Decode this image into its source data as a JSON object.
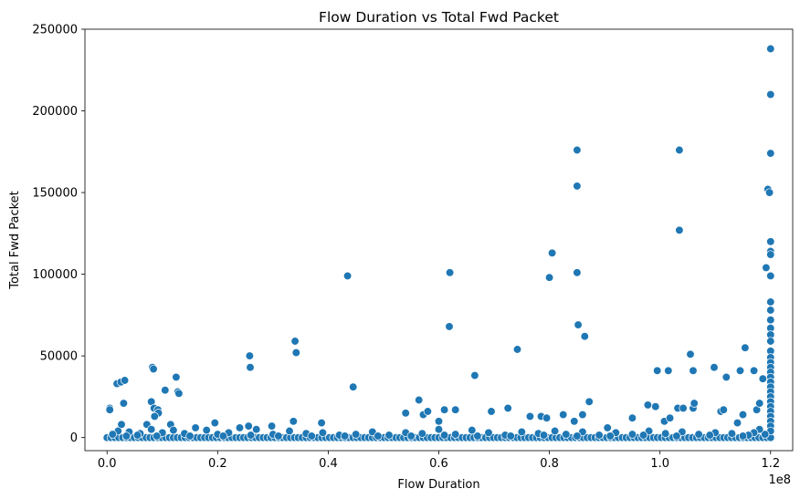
{
  "chart_data": {
    "type": "scatter",
    "title": "Flow Duration vs Total Fwd Packet",
    "xlabel": "Flow Duration",
    "ylabel": "Total Fwd Packet",
    "x_offset_label": "1e8",
    "xlim": [
      -4000000,
      124000000
    ],
    "ylim": [
      -8000,
      250000
    ],
    "x_ticks": [
      0,
      20000000,
      40000000,
      60000000,
      80000000,
      100000000,
      120000000
    ],
    "x_tick_labels": [
      "0.0",
      "0.2",
      "0.4",
      "0.6",
      "0.8",
      "1.0",
      "1.2"
    ],
    "y_ticks": [
      0,
      50000,
      100000,
      150000,
      200000,
      250000
    ],
    "y_tick_labels": [
      "0",
      "50000",
      "100000",
      "150000",
      "200000",
      "250000"
    ],
    "grid": false,
    "legend": "none",
    "marker_color": "#1f77b4",
    "marker_edge_color": "#ffffff",
    "series": [
      {
        "points": [
          [
            500000,
            18000
          ],
          [
            500000,
            17000
          ],
          [
            1800000,
            33000
          ],
          [
            2500000,
            34000
          ],
          [
            3200000,
            35000
          ],
          [
            3000000,
            21000
          ],
          [
            2600000,
            8000
          ],
          [
            8200000,
            43000
          ],
          [
            8400000,
            42000
          ],
          [
            8000000,
            22000
          ],
          [
            8500000,
            18000
          ],
          [
            9200000,
            17000
          ],
          [
            9300000,
            15000
          ],
          [
            8600000,
            13000
          ],
          [
            10500000,
            29000
          ],
          [
            12500000,
            37000
          ],
          [
            12800000,
            28000
          ],
          [
            13000000,
            27000
          ],
          [
            7200000,
            8000
          ],
          [
            11500000,
            8000
          ],
          [
            19500000,
            9000
          ],
          [
            25800000,
            50000
          ],
          [
            25900000,
            43000
          ],
          [
            25600000,
            7000
          ],
          [
            29800000,
            7000
          ],
          [
            34000000,
            59000
          ],
          [
            34200000,
            52000
          ],
          [
            33700000,
            10000
          ],
          [
            38800000,
            9000
          ],
          [
            43500000,
            99000
          ],
          [
            44500000,
            31000
          ],
          [
            54000000,
            15000
          ],
          [
            56400000,
            23000
          ],
          [
            57200000,
            14000
          ],
          [
            58000000,
            16000
          ],
          [
            60000000,
            10000
          ],
          [
            61000000,
            17000
          ],
          [
            62000000,
            101000
          ],
          [
            61900000,
            68000
          ],
          [
            63000000,
            17000
          ],
          [
            66500000,
            38000
          ],
          [
            69500000,
            16000
          ],
          [
            72500000,
            18000
          ],
          [
            74200000,
            54000
          ],
          [
            76500000,
            13000
          ],
          [
            78500000,
            13000
          ],
          [
            79500000,
            12000
          ],
          [
            80000000,
            98000
          ],
          [
            80500000,
            113000
          ],
          [
            82500000,
            14000
          ],
          [
            85000000,
            176000
          ],
          [
            85000000,
            154000
          ],
          [
            85000000,
            101000
          ],
          [
            85200000,
            69000
          ],
          [
            86400000,
            62000
          ],
          [
            87200000,
            22000
          ],
          [
            84500000,
            10000
          ],
          [
            86000000,
            14000
          ],
          [
            90500000,
            6000
          ],
          [
            95000000,
            12000
          ],
          [
            97800000,
            20000
          ],
          [
            99200000,
            19000
          ],
          [
            99500000,
            41000
          ],
          [
            100800000,
            10000
          ],
          [
            101500000,
            41000
          ],
          [
            101800000,
            12000
          ],
          [
            103200000,
            18000
          ],
          [
            103500000,
            176000
          ],
          [
            103500000,
            127000
          ],
          [
            104200000,
            18000
          ],
          [
            105500000,
            51000
          ],
          [
            106000000,
            41000
          ],
          [
            106000000,
            18000
          ],
          [
            106200000,
            21000
          ],
          [
            109800000,
            43000
          ],
          [
            111000000,
            16000
          ],
          [
            111500000,
            17000
          ],
          [
            112000000,
            37000
          ],
          [
            114500000,
            41000
          ],
          [
            115400000,
            55000
          ],
          [
            114000000,
            9000
          ],
          [
            115000000,
            14000
          ],
          [
            117000000,
            41000
          ],
          [
            117500000,
            17000
          ],
          [
            118000000,
            21000
          ],
          [
            118600000,
            36000
          ],
          [
            119200000,
            104000
          ],
          [
            119500000,
            152000
          ],
          [
            119800000,
            150000
          ],
          [
            120000000,
            238000
          ],
          [
            120000000,
            210000
          ],
          [
            120000000,
            174000
          ],
          [
            120000000,
            120000
          ],
          [
            120000000,
            114000
          ],
          [
            120000000,
            112000
          ],
          [
            120000000,
            99000
          ],
          [
            120000000,
            83000
          ],
          [
            120000000,
            78000
          ],
          [
            120000000,
            72000
          ],
          [
            120000000,
            67000
          ],
          [
            120000000,
            63000
          ],
          [
            120000000,
            59000
          ],
          [
            120000000,
            53000
          ],
          [
            120000000,
            49000
          ],
          [
            120000000,
            46000
          ],
          [
            120000000,
            43000
          ],
          [
            120000000,
            40000
          ],
          [
            120000000,
            37000
          ],
          [
            120000000,
            34000
          ],
          [
            120000000,
            31000
          ],
          [
            120000000,
            28000
          ],
          [
            120000000,
            25000
          ],
          [
            120000000,
            22000
          ],
          [
            120000000,
            19000
          ],
          [
            120000000,
            16000
          ],
          [
            120000000,
            13000
          ],
          [
            120000000,
            10000
          ],
          [
            120000000,
            7000
          ],
          [
            120000000,
            4000
          ],
          [
            119000000,
            2000
          ],
          [
            118000000,
            5000
          ],
          [
            117000000,
            3000
          ],
          [
            116000000,
            1500
          ],
          [
            113000000,
            2500
          ],
          [
            110000000,
            3000
          ],
          [
            107000000,
            2000
          ],
          [
            104000000,
            3500
          ],
          [
            101000000,
            2500
          ],
          [
            98000000,
            4000
          ],
          [
            95000000,
            2000
          ],
          [
            92000000,
            3000
          ],
          [
            89000000,
            1500
          ],
          [
            86000000,
            3500
          ],
          [
            83000000,
            2000
          ],
          [
            81000000,
            4000
          ],
          [
            78000000,
            2500
          ],
          [
            75000000,
            3500
          ],
          [
            72000000,
            1500
          ],
          [
            69000000,
            3000
          ],
          [
            66000000,
            4500
          ],
          [
            63000000,
            2000
          ],
          [
            60000000,
            5000
          ],
          [
            57000000,
            2500
          ],
          [
            54000000,
            3000
          ],
          [
            51000000,
            1500
          ],
          [
            48000000,
            3500
          ],
          [
            45000000,
            2000
          ],
          [
            42000000,
            1500
          ],
          [
            39000000,
            3000
          ],
          [
            36000000,
            2500
          ],
          [
            33000000,
            4000
          ],
          [
            30000000,
            2000
          ],
          [
            27000000,
            5000
          ],
          [
            24000000,
            6000
          ],
          [
            22000000,
            3000
          ],
          [
            20000000,
            2000
          ],
          [
            18000000,
            4500
          ],
          [
            16000000,
            6000
          ],
          [
            14000000,
            2500
          ],
          [
            12000000,
            4500
          ],
          [
            10000000,
            3000
          ],
          [
            8000000,
            5000
          ],
          [
            6000000,
            2500
          ],
          [
            4000000,
            3500
          ],
          [
            2000000,
            4000
          ],
          [
            1000000,
            2000
          ],
          [
            3500000,
            1000
          ],
          [
            5500000,
            1500
          ],
          [
            9000000,
            1000
          ],
          [
            15000000,
            1000
          ],
          [
            21000000,
            1000
          ],
          [
            26000000,
            1500
          ],
          [
            31000000,
            1000
          ],
          [
            37000000,
            1000
          ],
          [
            43000000,
            1000
          ],
          [
            49000000,
            1000
          ],
          [
            55000000,
            1000
          ],
          [
            61000000,
            1500
          ],
          [
            67000000,
            1000
          ],
          [
            73000000,
            1000
          ],
          [
            79000000,
            1500
          ],
          [
            85000000,
            1000
          ],
          [
            91000000,
            1000
          ],
          [
            97000000,
            1500
          ],
          [
            103000000,
            1000
          ],
          [
            109000000,
            1500
          ],
          [
            115000000,
            1000
          ]
        ]
      }
    ],
    "dense_band": {
      "x_range": [
        0,
        120000000
      ],
      "y_value": 0
    }
  }
}
